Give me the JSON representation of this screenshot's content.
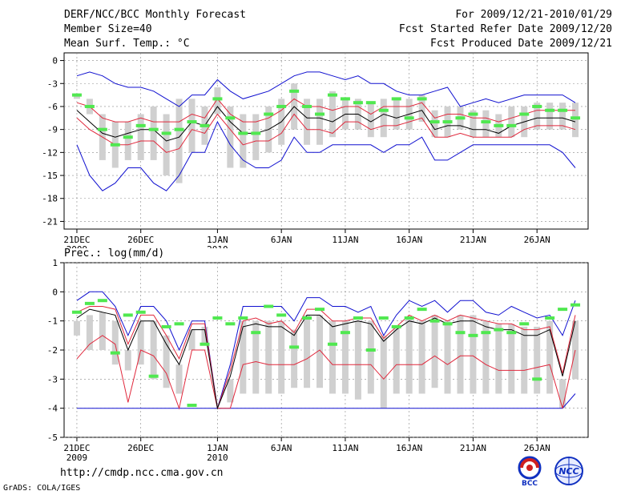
{
  "header": {
    "title": "DERF/NCC/BCC Monthly Forecast",
    "member_size": "Member Size=40",
    "variable": "Mean Surf. Temp.: °C",
    "period": "For 2009/12/21-2010/01/29",
    "refer_date": "Fcst Started Refer Date 2009/12/20",
    "produced_date": "Fcst Produced Date 2009/12/21"
  },
  "footer": {
    "url": "http://cmdp.ncc.cma.gov.cn",
    "credit": "GrADS: COLA/IGES",
    "logo1_text": "BCC",
    "logo2_text": "NCC"
  },
  "colors": {
    "box": "#d0d0d0",
    "mean": "#000000",
    "quartile": "#e0283c",
    "extreme": "#1010d0",
    "observed": "#50e850",
    "grid": "#888888"
  },
  "chart_data": [
    {
      "type": "line",
      "title": "Mean Surf. Temp.: °C",
      "x_tick_labels": [
        "21DEC",
        "26DEC",
        "1JAN",
        "6JAN",
        "11JAN",
        "16JAN",
        "21JAN",
        "26JAN"
      ],
      "x_tick_days": [
        0,
        5,
        11,
        16,
        21,
        26,
        31,
        36
      ],
      "x_year_labels": [
        {
          "day": 0,
          "label": "2009"
        },
        {
          "day": 11,
          "label": "2010"
        }
      ],
      "y_ticks": [
        0,
        -3,
        -6,
        -9,
        -12,
        -15,
        -18,
        -21
      ],
      "ylim": [
        -22,
        1
      ],
      "n_days": 40,
      "series": [
        {
          "name": "max",
          "values": [
            -2,
            -1.5,
            -2,
            -3,
            -3.5,
            -3.5,
            -4,
            -5,
            -6,
            -4.5,
            -4.5,
            -2.5,
            -4,
            -5,
            -4.5,
            -4,
            -3,
            -2,
            -1.5,
            -1.5,
            -2,
            -2.5,
            -2,
            -3,
            -3,
            -4,
            -4.5,
            -4.5,
            -4,
            -3.5,
            -6,
            -5.5,
            -5,
            -5.5,
            -5,
            -4.5,
            -4.5,
            -4.5,
            -4.5,
            -5.5
          ]
        },
        {
          "name": "q75",
          "values": [
            -5.5,
            -6,
            -7.5,
            -8,
            -8,
            -7.5,
            -8,
            -8,
            -8,
            -7,
            -7.5,
            -5,
            -7,
            -8,
            -8,
            -7.5,
            -6.5,
            -5,
            -6,
            -6,
            -6.5,
            -6,
            -6,
            -7,
            -6,
            -6,
            -6,
            -5.5,
            -7.5,
            -7,
            -7,
            -7.5,
            -7.5,
            -8,
            -7.5,
            -7,
            -6.5,
            -6.5,
            -6.5,
            -6.5
          ]
        },
        {
          "name": "mean",
          "values": [
            -6.5,
            -8,
            -9.5,
            -10,
            -9.5,
            -9,
            -9,
            -10.5,
            -10,
            -8,
            -8.5,
            -6,
            -8,
            -9.5,
            -9.5,
            -9,
            -8,
            -6,
            -7.5,
            -7.5,
            -8,
            -7,
            -7,
            -8,
            -7,
            -7.5,
            -7,
            -6.5,
            -9,
            -8.5,
            -8.5,
            -9,
            -9,
            -9.5,
            -8.5,
            -8,
            -7.5,
            -7.5,
            -7.5,
            -8
          ]
        },
        {
          "name": "q25",
          "values": [
            -7.5,
            -9,
            -10,
            -11,
            -11,
            -10.5,
            -10.5,
            -12,
            -11.5,
            -9,
            -9.5,
            -7,
            -9,
            -11,
            -10.5,
            -10.5,
            -9.5,
            -7,
            -9,
            -9,
            -9.5,
            -8,
            -8,
            -9,
            -8.5,
            -8.5,
            -8,
            -7.5,
            -10,
            -10,
            -9.5,
            -10,
            -10,
            -10,
            -10,
            -9,
            -8.5,
            -8.5,
            -8.5,
            -9
          ]
        },
        {
          "name": "min",
          "values": [
            -11,
            -15,
            -17,
            -16,
            -14,
            -14,
            -16,
            -17,
            -15,
            -12,
            -12,
            -8,
            -11,
            -13,
            -14,
            -14,
            -13,
            -10,
            -12,
            -12,
            -11,
            -11,
            -11,
            -11,
            -12,
            -11,
            -11,
            -10,
            -13,
            -13,
            -12,
            -11,
            -11,
            -11,
            -11,
            -11,
            -11,
            -11,
            -12,
            -14
          ]
        },
        {
          "name": "box_top",
          "values": [
            -4.5,
            -5,
            -7,
            -8,
            -8,
            -7,
            -6,
            -7,
            -5,
            -5,
            -6,
            -3.5,
            -6,
            -7,
            -7,
            -6,
            -5,
            -3,
            -5,
            -5,
            -4,
            -5,
            -5,
            -5.5,
            -5,
            -5,
            -5,
            -4.5,
            -6.5,
            -6,
            -6,
            -6.5,
            -6.5,
            -7,
            -6,
            -6,
            -5.5,
            -5.5,
            -5.5,
            -5.5
          ]
        },
        {
          "name": "box_bottom",
          "values": [
            -5,
            -7,
            -13,
            -14,
            -13,
            -13,
            -13,
            -15,
            -16,
            -12,
            -11,
            -7,
            -14,
            -14,
            -13,
            -12,
            -11,
            -9,
            -11,
            -11,
            -10,
            -9,
            -9,
            -10,
            -10,
            -9,
            -9,
            -8,
            -10,
            -10,
            -9,
            -10,
            -10,
            -10,
            -10,
            -10,
            -9,
            -9,
            -9,
            -10
          ]
        },
        {
          "name": "observed",
          "values": [
            -4.5,
            -6,
            -9,
            -11,
            -10,
            -8.5,
            -9,
            -9.5,
            -9,
            -8,
            -8.5,
            -5,
            -7.5,
            -9.5,
            -9.5,
            -7,
            -6,
            -4,
            -6,
            -7,
            -4.5,
            -5,
            -5.5,
            -5.5,
            -6.5,
            -5,
            -7.5,
            -5,
            -8,
            -8,
            -7.5,
            -7,
            -8,
            -8.5,
            -8.5,
            -7,
            -6,
            -6.5,
            -6.5,
            -7.5
          ]
        }
      ]
    },
    {
      "type": "line",
      "title": "Prec.: log(mm/d)",
      "x_tick_labels": [
        "21DEC",
        "26DEC",
        "1JAN",
        "6JAN",
        "11JAN",
        "16JAN",
        "21JAN",
        "26JAN"
      ],
      "x_tick_days": [
        0,
        5,
        11,
        16,
        21,
        26,
        31,
        36
      ],
      "x_year_labels": [
        {
          "day": 0,
          "label": "2009"
        },
        {
          "day": 11,
          "label": "2010"
        }
      ],
      "y_ticks": [
        1,
        0,
        -1,
        -2,
        -3,
        -4,
        -5
      ],
      "ylim": [
        -5,
        1
      ],
      "n_days": 40,
      "series": [
        {
          "name": "max",
          "values": [
            -0.3,
            0,
            0,
            -0.5,
            -1.5,
            -0.5,
            -0.5,
            -1,
            -2,
            -1,
            -1,
            -4,
            -2.5,
            -0.5,
            -0.5,
            -0.5,
            -0.5,
            -1,
            -0.2,
            -0.2,
            -0.5,
            -0.5,
            -0.7,
            -0.5,
            -1.5,
            -0.8,
            -0.3,
            -0.5,
            -0.3,
            -0.7,
            -0.3,
            -0.3,
            -0.7,
            -0.8,
            -0.5,
            -0.7,
            -0.9,
            -0.8,
            -1.5,
            -0.3
          ]
        },
        {
          "name": "q75",
          "values": [
            -0.7,
            -0.5,
            -0.5,
            -0.6,
            -1.8,
            -0.8,
            -0.8,
            -1.5,
            -2.3,
            -1.1,
            -1.1,
            -4,
            -2.7,
            -1,
            -0.9,
            -1.1,
            -1,
            -1.4,
            -0.6,
            -0.6,
            -1,
            -1,
            -0.9,
            -0.9,
            -1.6,
            -1.2,
            -0.8,
            -1,
            -0.8,
            -1,
            -0.8,
            -0.9,
            -1,
            -1.1,
            -1.1,
            -1.3,
            -1.3,
            -1.2,
            -2.8,
            -0.8
          ]
        },
        {
          "name": "mean",
          "values": [
            -0.9,
            -0.6,
            -0.7,
            -0.8,
            -2,
            -1,
            -1,
            -1.8,
            -2.5,
            -1.3,
            -1.3,
            -4,
            -2.9,
            -1.2,
            -1.1,
            -1.2,
            -1.2,
            -1.5,
            -0.8,
            -0.8,
            -1.2,
            -1.1,
            -1,
            -1.1,
            -1.7,
            -1.3,
            -1,
            -1.1,
            -0.9,
            -1.1,
            -1,
            -1,
            -1.2,
            -1.3,
            -1.3,
            -1.5,
            -1.5,
            -1.3,
            -2.9,
            -1
          ]
        },
        {
          "name": "q25",
          "values": [
            -2.3,
            -1.8,
            -1.5,
            -1.8,
            -3.8,
            -2,
            -2.2,
            -2.8,
            -4,
            -2,
            -2,
            -4,
            -4,
            -2.5,
            -2.4,
            -2.5,
            -2.5,
            -2.5,
            -2.3,
            -2,
            -2.5,
            -2.5,
            -2.5,
            -2.5,
            -3,
            -2.5,
            -2.5,
            -2.5,
            -2.2,
            -2.5,
            -2.2,
            -2.2,
            -2.5,
            -2.7,
            -2.7,
            -2.7,
            -2.6,
            -2.5,
            -4,
            -2
          ]
        },
        {
          "name": "min",
          "values": [
            -4,
            -4,
            -4,
            -4,
            -4,
            -4,
            -4,
            -4,
            -4,
            -4,
            -4,
            -4,
            -4,
            -4,
            -4,
            -4,
            -4,
            -4,
            -4,
            -4,
            -4,
            -4,
            -4,
            -4,
            -4,
            -4,
            -4,
            -4,
            -4,
            -4,
            -4,
            -4,
            -4,
            -4,
            -4,
            -4,
            -4,
            -4,
            -4,
            -3.5
          ]
        },
        {
          "name": "box_top",
          "values": [
            -1,
            -0.8,
            -0.7,
            -1,
            -2,
            -1,
            -1,
            -1.5,
            -2.5,
            -1.3,
            -1.2,
            -4,
            -3,
            -1,
            -1,
            -1,
            -1,
            -1.3,
            -0.8,
            -0.8,
            -1,
            -1,
            -1,
            -1,
            -1.5,
            -1.2,
            -0.9,
            -1,
            -0.8,
            -1,
            -0.8,
            -0.8,
            -1,
            -1.1,
            -1.1,
            -1.2,
            -1.2,
            -1,
            -3,
            -1
          ]
        },
        {
          "name": "box_bottom",
          "values": [
            -1.5,
            -2,
            -2,
            -2.5,
            -2.7,
            -2.5,
            -3,
            -3.3,
            -3.5,
            -2,
            -1.8,
            -4,
            -3.8,
            -3.5,
            -3.5,
            -3.5,
            -3.5,
            -3.3,
            -3.3,
            -3.3,
            -3.5,
            -3.5,
            -3.7,
            -3.5,
            -4,
            -3.5,
            -3.5,
            -3.5,
            -3.3,
            -3.5,
            -3.5,
            -3.5,
            -3.5,
            -3.5,
            -3.5,
            -3.5,
            -3.5,
            -3.5,
            -4,
            -3
          ]
        },
        {
          "name": "observed",
          "values": [
            -0.7,
            -0.4,
            -0.3,
            -2.1,
            -0.8,
            -0.7,
            -2.9,
            -1.2,
            -1.1,
            -3.9,
            -1.8,
            -0.9,
            -1.1,
            -0.9,
            -1.4,
            -0.5,
            -0.8,
            -1.9,
            -0.9,
            -0.6,
            -1.8,
            -1.4,
            -0.9,
            -2,
            -0.9,
            -1.2,
            -0.9,
            -0.6,
            -1,
            -1.1,
            -1.4,
            -1.5,
            -1.4,
            -1.3,
            -1.4,
            -1.1,
            -3,
            -0.9,
            -0.6,
            -0.45
          ]
        }
      ]
    }
  ]
}
